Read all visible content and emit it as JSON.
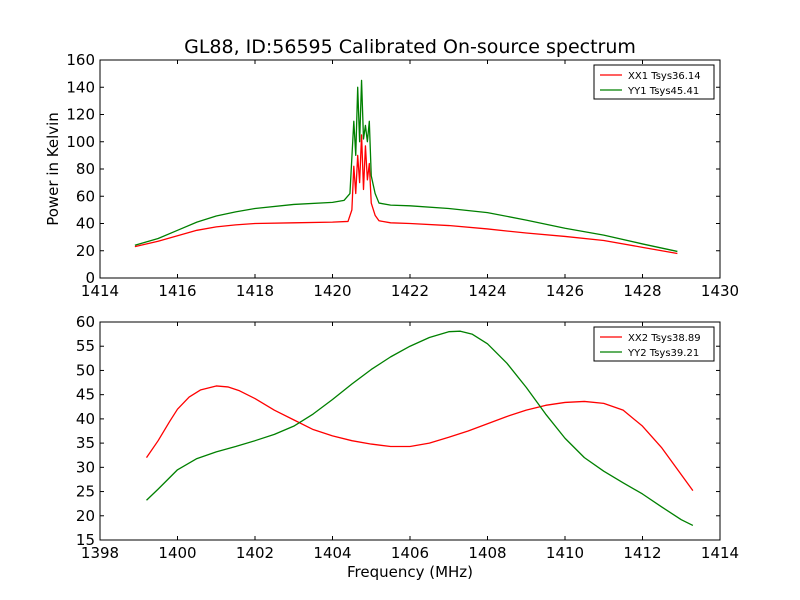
{
  "figure": {
    "title": "GL88, ID:56595 Calibrated On-source spectrum",
    "ylabel": "Power in Kelvin",
    "xlabel": "Frequency (MHz)"
  },
  "colors": {
    "xx": "#ff0000",
    "yy": "#008000"
  },
  "chart_data": [
    {
      "type": "line",
      "xlim": [
        1414,
        1430
      ],
      "ylim": [
        0,
        160
      ],
      "xticks": [
        1414,
        1416,
        1418,
        1420,
        1422,
        1424,
        1426,
        1428,
        1430
      ],
      "yticks": [
        0,
        20,
        40,
        60,
        80,
        100,
        120,
        140,
        160
      ],
      "legend_position": "top-right",
      "series": [
        {
          "name": "XX1 Tsys36.14",
          "color": "#ff0000",
          "points": [
            [
              1414.9,
              23
            ],
            [
              1415.5,
              27
            ],
            [
              1416.0,
              31
            ],
            [
              1416.5,
              35
            ],
            [
              1417.0,
              37.5
            ],
            [
              1417.5,
              39
            ],
            [
              1418.0,
              40
            ],
            [
              1419.0,
              40.5
            ],
            [
              1420.0,
              41
            ],
            [
              1420.4,
              41.5
            ],
            [
              1420.5,
              50
            ],
            [
              1420.55,
              82
            ],
            [
              1420.6,
              62
            ],
            [
              1420.65,
              90
            ],
            [
              1420.7,
              70
            ],
            [
              1420.75,
              105
            ],
            [
              1420.8,
              65
            ],
            [
              1420.85,
              97
            ],
            [
              1420.9,
              72
            ],
            [
              1420.95,
              84
            ],
            [
              1421.0,
              55
            ],
            [
              1421.1,
              46
            ],
            [
              1421.2,
              42
            ],
            [
              1421.5,
              40.5
            ],
            [
              1422.0,
              40
            ],
            [
              1423.0,
              38.5
            ],
            [
              1424.0,
              36
            ],
            [
              1425.0,
              33
            ],
            [
              1426.0,
              30.5
            ],
            [
              1427.0,
              27.5
            ],
            [
              1428.0,
              22.5
            ],
            [
              1428.9,
              18
            ]
          ]
        },
        {
          "name": "YY1 Tsys45.41",
          "color": "#008000",
          "points": [
            [
              1414.9,
              24
            ],
            [
              1415.5,
              29
            ],
            [
              1416.0,
              35
            ],
            [
              1416.5,
              41
            ],
            [
              1417.0,
              45.5
            ],
            [
              1417.5,
              48.5
            ],
            [
              1418.0,
              51
            ],
            [
              1419.0,
              54
            ],
            [
              1420.0,
              55.5
            ],
            [
              1420.3,
              57
            ],
            [
              1420.45,
              62
            ],
            [
              1420.55,
              115
            ],
            [
              1420.6,
              90
            ],
            [
              1420.65,
              140
            ],
            [
              1420.7,
              100
            ],
            [
              1420.75,
              145
            ],
            [
              1420.8,
              102
            ],
            [
              1420.85,
              112
            ],
            [
              1420.9,
              100
            ],
            [
              1420.95,
              115
            ],
            [
              1421.0,
              75
            ],
            [
              1421.1,
              62
            ],
            [
              1421.2,
              55
            ],
            [
              1421.5,
              53.5
            ],
            [
              1422.0,
              53
            ],
            [
              1423.0,
              51
            ],
            [
              1424.0,
              48
            ],
            [
              1425.0,
              42.5
            ],
            [
              1426.0,
              36.5
            ],
            [
              1427.0,
              31.5
            ],
            [
              1428.0,
              25
            ],
            [
              1428.9,
              19.5
            ]
          ]
        }
      ]
    },
    {
      "type": "line",
      "xlim": [
        1398,
        1414
      ],
      "ylim": [
        15,
        60
      ],
      "xticks": [
        1398,
        1400,
        1402,
        1404,
        1406,
        1408,
        1410,
        1412,
        1414
      ],
      "yticks": [
        15,
        20,
        25,
        30,
        35,
        40,
        45,
        50,
        55,
        60
      ],
      "legend_position": "top-right",
      "series": [
        {
          "name": "XX2 Tsys38.89",
          "color": "#ff0000",
          "points": [
            [
              1399.2,
              32
            ],
            [
              1399.5,
              35.5
            ],
            [
              1399.8,
              39.5
            ],
            [
              1400.0,
              42
            ],
            [
              1400.3,
              44.5
            ],
            [
              1400.6,
              46
            ],
            [
              1401.0,
              46.8
            ],
            [
              1401.3,
              46.6
            ],
            [
              1401.6,
              45.8
            ],
            [
              1402.0,
              44.2
            ],
            [
              1402.5,
              41.8
            ],
            [
              1403.0,
              39.8
            ],
            [
              1403.5,
              37.8
            ],
            [
              1404.0,
              36.5
            ],
            [
              1404.5,
              35.5
            ],
            [
              1405.0,
              34.8
            ],
            [
              1405.5,
              34.3
            ],
            [
              1406.0,
              34.3
            ],
            [
              1406.5,
              35
            ],
            [
              1407.0,
              36.2
            ],
            [
              1407.5,
              37.5
            ],
            [
              1408.0,
              39
            ],
            [
              1408.5,
              40.5
            ],
            [
              1409.0,
              41.8
            ],
            [
              1409.5,
              42.8
            ],
            [
              1410.0,
              43.4
            ],
            [
              1410.5,
              43.6
            ],
            [
              1411.0,
              43.2
            ],
            [
              1411.5,
              41.8
            ],
            [
              1412.0,
              38.5
            ],
            [
              1412.5,
              34
            ],
            [
              1413.0,
              28.5
            ],
            [
              1413.3,
              25.2
            ]
          ]
        },
        {
          "name": "YY2 Tsys39.21",
          "color": "#008000",
          "points": [
            [
              1399.2,
              23.2
            ],
            [
              1399.5,
              25.5
            ],
            [
              1400.0,
              29.5
            ],
            [
              1400.5,
              31.8
            ],
            [
              1401.0,
              33.2
            ],
            [
              1401.5,
              34.3
            ],
            [
              1402.0,
              35.5
            ],
            [
              1402.5,
              36.8
            ],
            [
              1403.0,
              38.5
            ],
            [
              1403.5,
              41
            ],
            [
              1404.0,
              44
            ],
            [
              1404.5,
              47.2
            ],
            [
              1405.0,
              50.2
            ],
            [
              1405.5,
              52.8
            ],
            [
              1406.0,
              55
            ],
            [
              1406.5,
              56.8
            ],
            [
              1407.0,
              58
            ],
            [
              1407.3,
              58.1
            ],
            [
              1407.6,
              57.5
            ],
            [
              1408.0,
              55.5
            ],
            [
              1408.5,
              51.5
            ],
            [
              1409.0,
              46.5
            ],
            [
              1409.5,
              41
            ],
            [
              1410.0,
              36
            ],
            [
              1410.5,
              32
            ],
            [
              1411.0,
              29.2
            ],
            [
              1411.5,
              26.8
            ],
            [
              1412.0,
              24.5
            ],
            [
              1412.5,
              21.8
            ],
            [
              1413.0,
              19.2
            ],
            [
              1413.3,
              18
            ]
          ]
        }
      ]
    }
  ]
}
